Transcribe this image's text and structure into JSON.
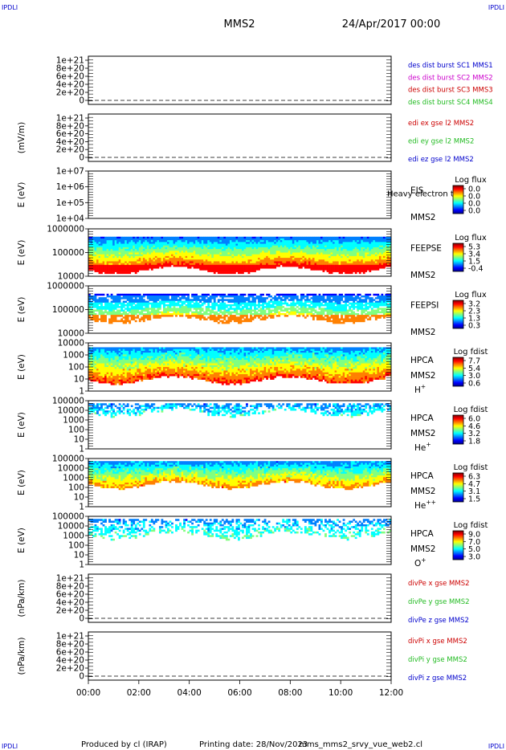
{
  "header": {
    "corner_label": "IPDLI",
    "spacecraft": "MMS2",
    "datetime": "24/Apr/2017 00:00"
  },
  "footer": {
    "produced_by": "Produced by cl (IRAP)",
    "printing_date": "Printing date: 28/Nov/2023",
    "script_name": "mms_mms2_srvy_vue_web2.cl"
  },
  "colors": {
    "blue": "#0000cc",
    "magenta": "#cc00cc",
    "red": "#cc0000",
    "green": "#22bb22"
  },
  "colorbar_colors": [
    "#000090",
    "#0000ff",
    "#0080ff",
    "#00ffff",
    "#80ff80",
    "#ffff00",
    "#ff8000",
    "#ff0000",
    "#800000"
  ],
  "chart_data": {
    "type": "stacked-panels",
    "time_axis": {
      "range": [
        "00:00",
        "12:00"
      ],
      "ticks": [
        "00:00",
        "02:00",
        "04:00",
        "06:00",
        "08:00",
        "10:00",
        "12:00"
      ]
    },
    "panels": [
      {
        "kind": "line",
        "ylabel": "",
        "ticks": [
          "1e+21",
          "8e+20",
          "6e+20",
          "4e+20",
          "2e+20",
          "0"
        ],
        "legend": [
          {
            "text": "des dist burst SC1 MMS1",
            "color": "#0000cc"
          },
          {
            "text": "des dist burst SC2 MMS2",
            "color": "#cc00cc"
          },
          {
            "text": "des dist burst SC3 MMS3",
            "color": "#cc0000"
          },
          {
            "text": "des dist burst SC4 MMS4",
            "color": "#22bb22"
          }
        ]
      },
      {
        "kind": "line",
        "ylabel": "(mV/m)",
        "ticks": [
          "1e+21",
          "8e+20",
          "6e+20",
          "4e+20",
          "2e+20",
          "0"
        ],
        "legend": [
          {
            "text": "edi ex gse l2 MMS2",
            "color": "#cc0000"
          },
          {
            "text": "edi ey gse l2 MMS2",
            "color": "#22bb22"
          },
          {
            "text": "edi ez gse l2 MMS2",
            "color": "#0000cc"
          }
        ]
      },
      {
        "kind": "spectrogram",
        "ylabel": "E (eV)",
        "ticks": [
          "1e+07",
          "1e+06",
          "1e+05",
          "1e+04"
        ],
        "instrument": [
          "EIS",
          "MMS2"
        ],
        "overlay": "Heavy electron to",
        "colorbar_title": "Log flux",
        "colorbar_ticks": [
          "0.0",
          "0.0",
          "0.0",
          "0.0"
        ]
      },
      {
        "kind": "spectrogram",
        "ylabel": "E (eV)",
        "ticks": [
          "1000000",
          "100000",
          "10000"
        ],
        "instrument": [
          "FEEPSE",
          "MMS2"
        ],
        "colorbar_title": "Log flux",
        "colorbar_ticks": [
          "5.3",
          "3.4",
          "1.5",
          "-0.4"
        ]
      },
      {
        "kind": "spectrogram",
        "ylabel": "E (eV)",
        "ticks": [
          "1000000",
          "100000",
          "10000"
        ],
        "instrument": [
          "FEEPSI",
          "MMS2"
        ],
        "colorbar_title": "Log flux",
        "colorbar_ticks": [
          "3.2",
          "2.3",
          "1.3",
          "0.3"
        ]
      },
      {
        "kind": "spectrogram",
        "ylabel": "E (eV)",
        "ticks": [
          "10000",
          "1000",
          "100",
          "10",
          "1"
        ],
        "instrument": [
          "HPCA",
          "MMS2"
        ],
        "species": "H",
        "species_charge": "+",
        "colorbar_title": "Log fdist",
        "colorbar_ticks": [
          "7.7",
          "5.4",
          "3.0",
          "0.6"
        ]
      },
      {
        "kind": "spectrogram",
        "ylabel": "E (eV)",
        "ticks": [
          "100000",
          "10000",
          "1000",
          "100",
          "10",
          "1"
        ],
        "instrument": [
          "HPCA",
          "MMS2"
        ],
        "species": "He",
        "species_charge": "+",
        "colorbar_title": "Log fdist",
        "colorbar_ticks": [
          "6.0",
          "4.6",
          "3.2",
          "1.8"
        ]
      },
      {
        "kind": "spectrogram",
        "ylabel": "E (eV)",
        "ticks": [
          "100000",
          "10000",
          "1000",
          "100",
          "10",
          "1"
        ],
        "instrument": [
          "HPCA",
          "MMS2"
        ],
        "species": "He",
        "species_charge": "++",
        "colorbar_title": "Log fdist",
        "colorbar_ticks": [
          "6.3",
          "4.7",
          "3.1",
          "1.5"
        ]
      },
      {
        "kind": "spectrogram",
        "ylabel": "E (eV)",
        "ticks": [
          "100000",
          "10000",
          "1000",
          "100",
          "10",
          "1"
        ],
        "instrument": [
          "HPCA",
          "MMS2"
        ],
        "species": "O",
        "species_charge": "+",
        "colorbar_title": "Log fdist",
        "colorbar_ticks": [
          "9.0",
          "7.0",
          "5.0",
          "3.0"
        ]
      },
      {
        "kind": "line",
        "ylabel": "(nPa/km)",
        "ticks": [
          "1e+21",
          "8e+20",
          "6e+20",
          "4e+20",
          "2e+20",
          "0"
        ],
        "legend": [
          {
            "text": "divPe x gse MMS2",
            "color": "#cc0000"
          },
          {
            "text": "divPe y gse MMS2",
            "color": "#22bb22"
          },
          {
            "text": "divPe z gse MMS2",
            "color": "#0000cc"
          }
        ]
      },
      {
        "kind": "line",
        "ylabel": "(nPa/km)",
        "ticks": [
          "1e+21",
          "8e+20",
          "6e+20",
          "4e+20",
          "2e+20",
          "0"
        ],
        "legend": [
          {
            "text": "divPi x gse MMS2",
            "color": "#cc0000"
          },
          {
            "text": "divPi y gse MMS2",
            "color": "#22bb22"
          },
          {
            "text": "divPi z gse MMS2",
            "color": "#0000cc"
          }
        ]
      }
    ]
  }
}
